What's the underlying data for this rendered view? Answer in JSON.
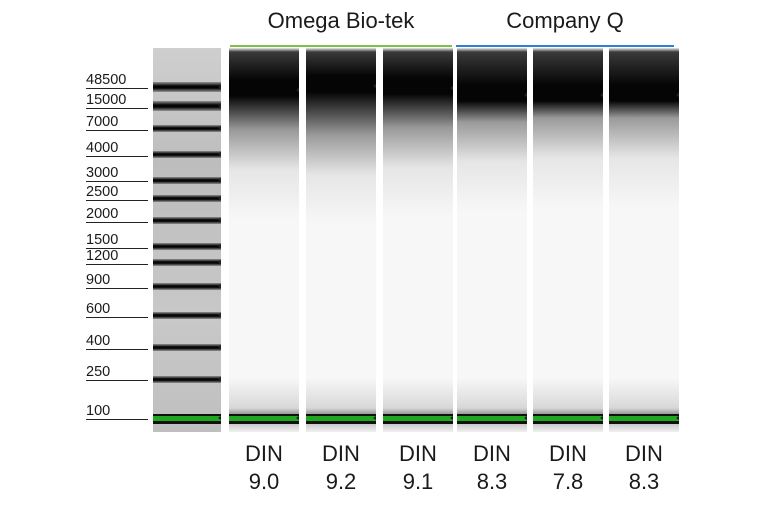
{
  "groups": [
    {
      "name": "Omega Bio-tek",
      "color": "#7cc24a"
    },
    {
      "name": "Company Q",
      "color": "#2f7ed8"
    }
  ],
  "ladder": {
    "sizes": [
      "48500",
      "15000",
      "7000",
      "4000",
      "3000",
      "2500",
      "2000",
      "1500",
      "1200",
      "900",
      "600",
      "400",
      "250",
      "100"
    ]
  },
  "samples": [
    {
      "din_label": "DIN",
      "din_value": "9.0",
      "group": "Omega Bio-tek"
    },
    {
      "din_label": "DIN",
      "din_value": "9.2",
      "group": "Omega Bio-tek"
    },
    {
      "din_label": "DIN",
      "din_value": "9.1",
      "group": "Omega Bio-tek"
    },
    {
      "din_label": "DIN",
      "din_value": "8.3",
      "group": "Company Q"
    },
    {
      "din_label": "DIN",
      "din_value": "7.8",
      "group": "Company Q"
    },
    {
      "din_label": "DIN",
      "din_value": "8.3",
      "group": "Company Q"
    }
  ],
  "colors": {
    "marker_band": "#1fa81f",
    "band": "#0a0a0a",
    "lane_bg": "#f6f6f6"
  }
}
